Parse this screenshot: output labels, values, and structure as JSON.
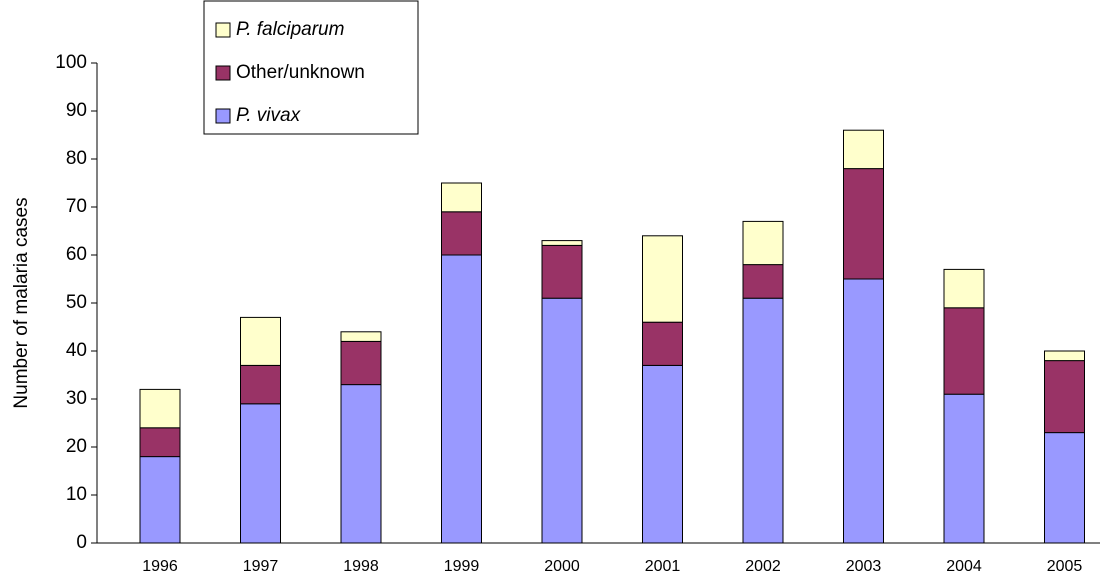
{
  "chart_data": {
    "type": "stacked_bar",
    "y_label": "Number of malaria cases",
    "categories": [
      "1996",
      "1997",
      "1998",
      "1999",
      "2000",
      "2001",
      "2002",
      "2003",
      "2004",
      "2005"
    ],
    "series": [
      {
        "name": "P. vivax",
        "color": "#9999ff",
        "values": [
          18,
          29,
          33,
          60,
          51,
          37,
          51,
          55,
          31,
          23
        ]
      },
      {
        "name": "Other/unknown",
        "color": "#993366",
        "values": [
          6,
          8,
          9,
          9,
          11,
          9,
          7,
          23,
          18,
          15
        ]
      },
      {
        "name": "P. falciparum",
        "color": "#ffffcc",
        "values": [
          8,
          10,
          2,
          6,
          1,
          18,
          9,
          8,
          8,
          2
        ]
      }
    ],
    "ylim": [
      0,
      100
    ],
    "yticks": [
      0,
      10,
      20,
      30,
      40,
      50,
      60,
      70,
      80,
      90,
      100
    ],
    "grid": false,
    "legend": "top-left"
  }
}
